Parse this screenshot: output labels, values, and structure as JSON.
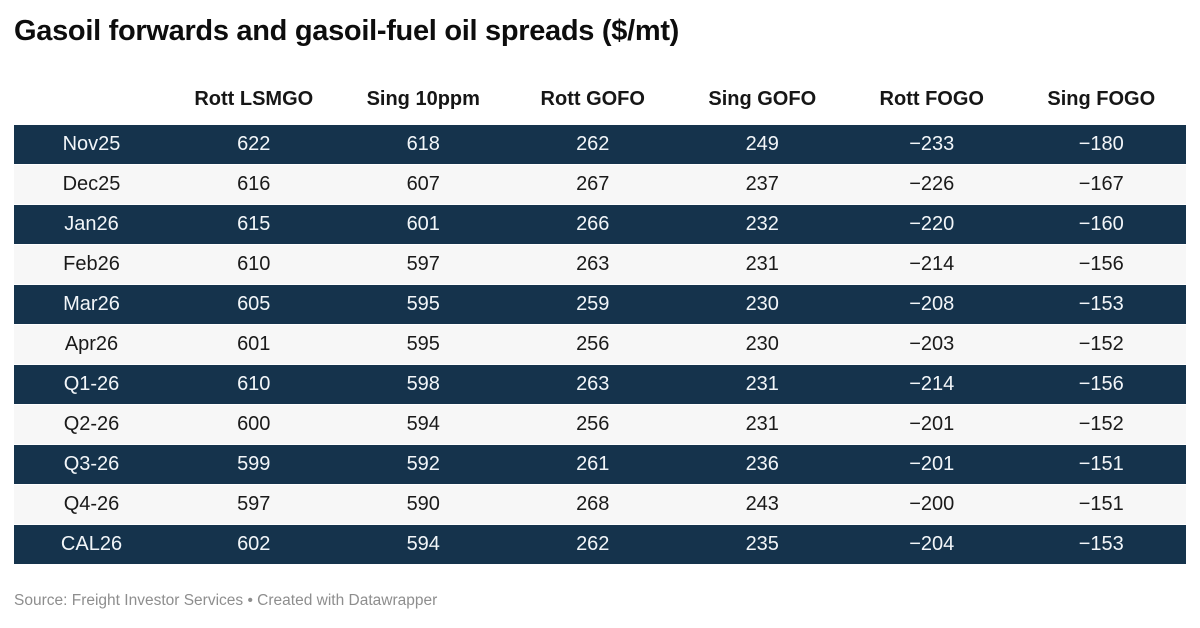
{
  "title": "Gasoil forwards and gasoil-fuel oil spreads ($/mt)",
  "footer": {
    "source_line": "Source: Freight Investor Services • Created with Datawrapper"
  },
  "colors": {
    "dark_row_bg": "#15334c",
    "dark_row_text": "#f2f6f9",
    "light_row_bg": "#f7f7f7",
    "light_row_text": "#1a1a1a",
    "header_text": "#161616",
    "title_text": "#0d0d0d",
    "footer_text": "#8e8e8e",
    "page_bg": "#ffffff"
  },
  "table": {
    "columns": [
      "",
      "Rott LSMGO",
      "Sing 10ppm",
      "Rott GOFO",
      "Sing GOFO",
      "Rott FOGO",
      "Sing FOGO"
    ],
    "rows": [
      {
        "label": "Nov25",
        "cells": [
          "622",
          "618",
          "262",
          "249",
          "−233",
          "−180"
        ]
      },
      {
        "label": "Dec25",
        "cells": [
          "616",
          "607",
          "267",
          "237",
          "−226",
          "−167"
        ]
      },
      {
        "label": "Jan26",
        "cells": [
          "615",
          "601",
          "266",
          "232",
          "−220",
          "−160"
        ]
      },
      {
        "label": "Feb26",
        "cells": [
          "610",
          "597",
          "263",
          "231",
          "−214",
          "−156"
        ]
      },
      {
        "label": "Mar26",
        "cells": [
          "605",
          "595",
          "259",
          "230",
          "−208",
          "−153"
        ]
      },
      {
        "label": "Apr26",
        "cells": [
          "601",
          "595",
          "256",
          "230",
          "−203",
          "−152"
        ]
      },
      {
        "label": "Q1-26",
        "cells": [
          "610",
          "598",
          "263",
          "231",
          "−214",
          "−156"
        ]
      },
      {
        "label": "Q2-26",
        "cells": [
          "600",
          "594",
          "256",
          "231",
          "−201",
          "−152"
        ]
      },
      {
        "label": "Q3-26",
        "cells": [
          "599",
          "592",
          "261",
          "236",
          "−201",
          "−151"
        ]
      },
      {
        "label": "Q4-26",
        "cells": [
          "597",
          "590",
          "268",
          "243",
          "−200",
          "−151"
        ]
      },
      {
        "label": "CAL26",
        "cells": [
          "602",
          "594",
          "262",
          "235",
          "−204",
          "−153"
        ]
      }
    ]
  },
  "chart_data": {
    "type": "table",
    "title": "Gasoil forwards and gasoil-fuel oil spreads ($/mt)",
    "columns": [
      "Rott LSMGO",
      "Sing 10ppm",
      "Rott GOFO",
      "Sing GOFO",
      "Rott FOGO",
      "Sing FOGO"
    ],
    "row_labels": [
      "Nov25",
      "Dec25",
      "Jan26",
      "Feb26",
      "Mar26",
      "Apr26",
      "Q1-26",
      "Q2-26",
      "Q3-26",
      "Q4-26",
      "CAL26"
    ],
    "values": [
      [
        622,
        618,
        262,
        249,
        -233,
        -180
      ],
      [
        616,
        607,
        267,
        237,
        -226,
        -167
      ],
      [
        615,
        601,
        266,
        232,
        -220,
        -160
      ],
      [
        610,
        597,
        263,
        231,
        -214,
        -156
      ],
      [
        605,
        595,
        259,
        230,
        -208,
        -153
      ],
      [
        601,
        595,
        256,
        230,
        -203,
        -152
      ],
      [
        610,
        598,
        263,
        231,
        -214,
        -156
      ],
      [
        600,
        594,
        256,
        231,
        -201,
        -152
      ],
      [
        599,
        592,
        261,
        236,
        -201,
        -151
      ],
      [
        597,
        590,
        268,
        243,
        -200,
        -151
      ],
      [
        602,
        594,
        262,
        235,
        -204,
        -153
      ]
    ],
    "source": "Freight Investor Services",
    "created_with": "Datawrapper",
    "layout_hints": {
      "striped_rows": "alternating dark navy / light gray starting dark",
      "alignment": "all columns centered",
      "grid": "off"
    }
  }
}
